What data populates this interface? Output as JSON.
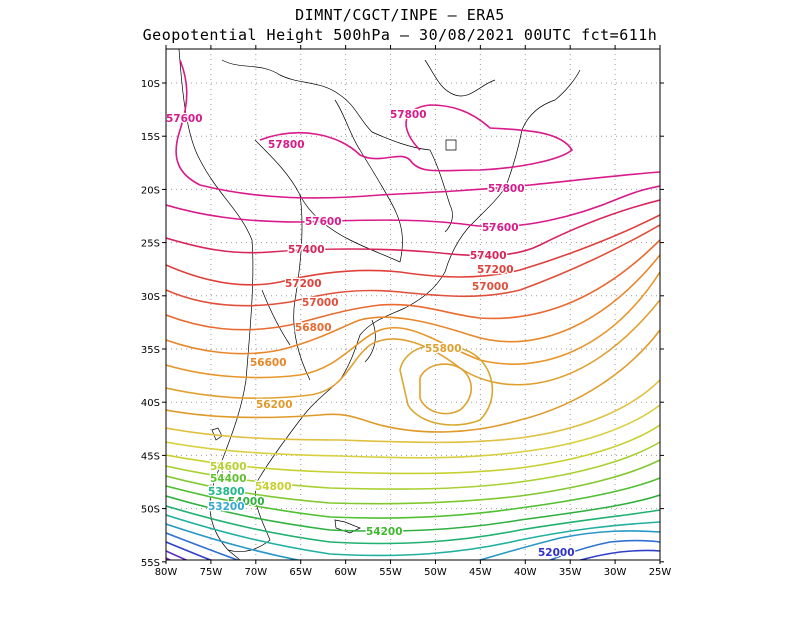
{
  "header": {
    "line1": "DIMNT/CGCT/INPE  —  ERA5",
    "line2": "Geopotential Height 500hPa  —  30/08/2021 00UTC fct=611h"
  },
  "axes": {
    "lat_labels": [
      "10S",
      "15S",
      "20S",
      "25S",
      "30S",
      "35S",
      "40S",
      "45S",
      "50S",
      "55S"
    ],
    "lon_labels": [
      "80W",
      "75W",
      "70W",
      "65W",
      "60W",
      "55W",
      "50W",
      "45W",
      "40W",
      "35W",
      "30W",
      "25W"
    ]
  },
  "contours": {
    "labels": [
      {
        "text": "57600",
        "color": "#d81a8a"
      },
      {
        "text": "57800",
        "color": "#d81a8a"
      },
      {
        "text": "57800",
        "color": "#d81a8a"
      },
      {
        "text": "57800",
        "color": "#d81a8a"
      },
      {
        "text": "57600",
        "color": "#d81a8a"
      },
      {
        "text": "57600",
        "color": "#d81a8a"
      },
      {
        "text": "57400",
        "color": "#d8245a"
      },
      {
        "text": "57400",
        "color": "#d8245a"
      },
      {
        "text": "57200",
        "color": "#e0403a"
      },
      {
        "text": "57200",
        "color": "#e0403a"
      },
      {
        "text": "57000",
        "color": "#e0503a"
      },
      {
        "text": "57000",
        "color": "#e0503a"
      },
      {
        "text": "56800",
        "color": "#e86a30"
      },
      {
        "text": "56600",
        "color": "#e8862a"
      },
      {
        "text": "55800",
        "color": "#e0a030"
      },
      {
        "text": "56200",
        "color": "#e09a2a"
      },
      {
        "text": "54600",
        "color": "#b8d030"
      },
      {
        "text": "54400",
        "color": "#60c030"
      },
      {
        "text": "54800",
        "color": "#c8d030"
      },
      {
        "text": "53800",
        "color": "#20b888"
      },
      {
        "text": "54000",
        "color": "#30b040"
      },
      {
        "text": "53200",
        "color": "#30a8d0"
      },
      {
        "text": "54200",
        "color": "#40b830"
      },
      {
        "text": "52000",
        "color": "#3030c8"
      }
    ]
  }
}
